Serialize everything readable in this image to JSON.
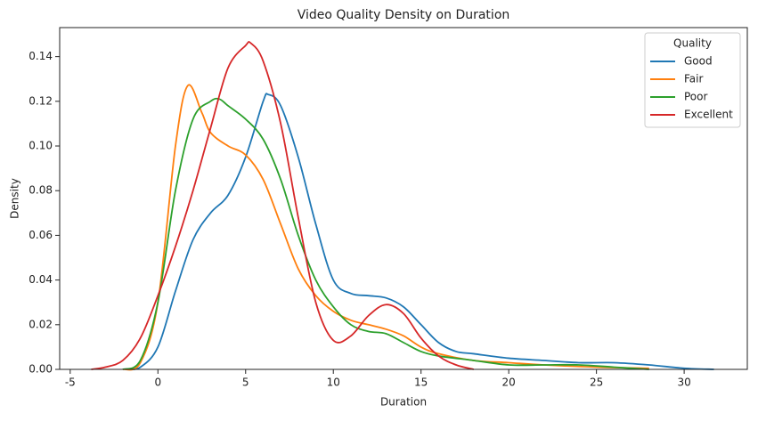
{
  "chart_data": {
    "type": "line",
    "title": "Video Quality Density on Duration",
    "xlabel": "Duration",
    "ylabel": "Density",
    "xlim": [
      -5.6,
      33.6
    ],
    "ylim": [
      0,
      0.153
    ],
    "xticks": [
      -5,
      0,
      5,
      10,
      15,
      20,
      25,
      30
    ],
    "yticks": [
      {
        "value": 0,
        "label": "0.00"
      },
      {
        "value": 0.02,
        "label": "0.02"
      },
      {
        "value": 0.04,
        "label": "0.04"
      },
      {
        "value": 0.06,
        "label": "0.06"
      },
      {
        "value": 0.08,
        "label": "0.08"
      },
      {
        "value": 0.1,
        "label": "0.10"
      },
      {
        "value": 0.12,
        "label": "0.12"
      },
      {
        "value": 0.14,
        "label": "0.14"
      }
    ],
    "legend_title": "Quality",
    "legend_position": "upper-right",
    "series": [
      {
        "name": "Good",
        "color": "#1f77b4",
        "x": [
          -1.8,
          -1,
          0,
          1,
          2,
          3,
          4,
          5,
          6,
          6.3,
          7,
          8,
          9,
          10,
          11,
          12,
          13,
          14,
          15,
          16,
          17,
          18,
          20,
          22,
          24,
          26,
          28,
          30,
          31.7
        ],
        "values": [
          0,
          0.001,
          0.01,
          0.035,
          0.058,
          0.07,
          0.078,
          0.095,
          0.12,
          0.123,
          0.118,
          0.095,
          0.065,
          0.04,
          0.034,
          0.033,
          0.032,
          0.028,
          0.02,
          0.012,
          0.008,
          0.007,
          0.005,
          0.004,
          0.003,
          0.003,
          0.002,
          0.0005,
          0
        ]
      },
      {
        "name": "Fair",
        "color": "#ff7f0e",
        "x": [
          -2,
          -1,
          0,
          1,
          1.7,
          2.5,
          3,
          4,
          5,
          6,
          7,
          8,
          9,
          10,
          11,
          12,
          13,
          14,
          15,
          16,
          18,
          20,
          22,
          25,
          28
        ],
        "values": [
          0,
          0.003,
          0.03,
          0.1,
          0.127,
          0.115,
          0.106,
          0.1,
          0.096,
          0.085,
          0.065,
          0.045,
          0.033,
          0.026,
          0.022,
          0.02,
          0.018,
          0.015,
          0.01,
          0.007,
          0.004,
          0.003,
          0.002,
          0.001,
          0.0005
        ]
      },
      {
        "name": "Poor",
        "color": "#2ca02c",
        "x": [
          -2,
          -1,
          0,
          1,
          2,
          3,
          3.5,
          4,
          5,
          6,
          7,
          8,
          9,
          10,
          11,
          12,
          13,
          14,
          15,
          16,
          18,
          20,
          22,
          24,
          26,
          28
        ],
        "values": [
          0,
          0.004,
          0.03,
          0.08,
          0.112,
          0.12,
          0.121,
          0.118,
          0.112,
          0.103,
          0.085,
          0.06,
          0.04,
          0.028,
          0.02,
          0.017,
          0.016,
          0.012,
          0.008,
          0.006,
          0.004,
          0.002,
          0.002,
          0.002,
          0.001,
          0
        ]
      },
      {
        "name": "Excellent",
        "color": "#d62728",
        "x": [
          -3.8,
          -3,
          -2,
          -1,
          0,
          1,
          2,
          3,
          4,
          5,
          5.3,
          6,
          7,
          8,
          9,
          10,
          11,
          12,
          13,
          14,
          15,
          16,
          17,
          18
        ],
        "values": [
          0,
          0.001,
          0.004,
          0.014,
          0.033,
          0.055,
          0.08,
          0.108,
          0.135,
          0.145,
          0.146,
          0.138,
          0.11,
          0.068,
          0.03,
          0.013,
          0.015,
          0.024,
          0.029,
          0.025,
          0.014,
          0.006,
          0.002,
          0
        ]
      }
    ]
  }
}
